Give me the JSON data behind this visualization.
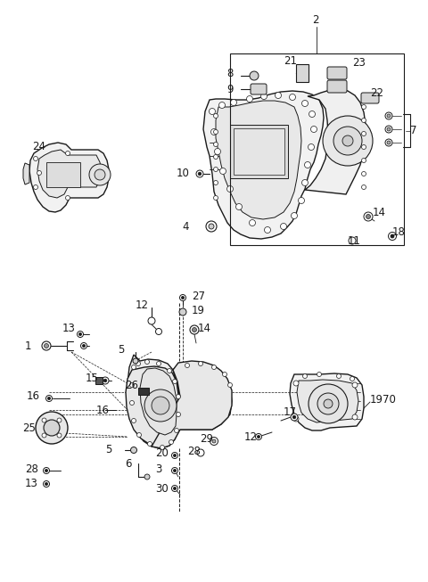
{
  "bg_color": "#ffffff",
  "line_color": "#1a1a1a",
  "fig_width": 4.8,
  "fig_height": 6.53,
  "dpi": 100
}
